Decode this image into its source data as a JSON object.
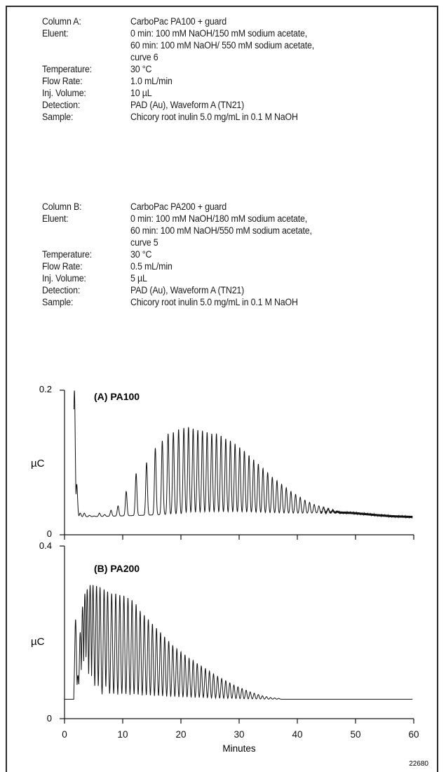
{
  "conditions": {
    "column_a": [
      {
        "label": "Column A:",
        "lines": [
          "CarboPac  PA100 + guard"
        ]
      },
      {
        "label": "Eluent:",
        "lines": [
          "0 min: 100 mM NaOH/150 mM sodium acetate,",
          "60 min: 100 mM NaOH/ 550 mM sodium acetate,",
          "curve 6"
        ]
      },
      {
        "label": "Temperature:",
        "lines": [
          "30 °C"
        ]
      },
      {
        "label": "Flow Rate:",
        "lines": [
          "1.0 mL/min"
        ]
      },
      {
        "label": "Inj. Volume:",
        "lines": [
          "10 µL"
        ]
      },
      {
        "label": "Detection:",
        "lines": [
          "PAD (Au), Waveform A (TN21)"
        ]
      },
      {
        "label": "Sample:",
        "lines": [
          "Chicory root inulin 5.0 mg/mL in 0.1 M NaOH"
        ]
      }
    ],
    "column_b": [
      {
        "label": "Column B:",
        "lines": [
          "CarboPac PA200 + guard"
        ]
      },
      {
        "label": "Eluent:",
        "lines": [
          "0 min: 100 mM NaOH/180 mM sodium acetate,",
          "60 min: 100 mM NaOH/550 mM sodium acetate,",
          "curve 5"
        ]
      },
      {
        "label": "Temperature:",
        "lines": [
          "30 °C"
        ]
      },
      {
        "label": "Flow Rate:",
        "lines": [
          "0.5  mL/min"
        ]
      },
      {
        "label": "Inj. Volume:",
        "lines": [
          "5 µL"
        ]
      },
      {
        "label": "Detection:",
        "lines": [
          "PAD (Au), Waveform A (TN21)"
        ]
      },
      {
        "label": "Sample:",
        "lines": [
          "Chicory root inulin 5.0 mg/mL in 0.1 M NaOH"
        ]
      }
    ]
  },
  "chart_data": [
    {
      "type": "line",
      "title": "(A) PA100",
      "ylabel": "µC",
      "ylim": [
        0,
        0.2
      ],
      "yticks": [
        "0",
        "0.2"
      ],
      "xlim": [
        0,
        60
      ],
      "grid": false,
      "baseline": 0.028,
      "peaks": [
        [
          1.7,
          0.2
        ],
        [
          2.1,
          0.07
        ],
        [
          2.7,
          0.03
        ],
        [
          3.4,
          0.03
        ],
        [
          4.3,
          0.027
        ],
        [
          5.1,
          0.026
        ],
        [
          6,
          0.03
        ],
        [
          6.9,
          0.028
        ],
        [
          8,
          0.034
        ],
        [
          9.2,
          0.04
        ],
        [
          10.6,
          0.06
        ],
        [
          12.3,
          0.085
        ],
        [
          14.1,
          0.1
        ],
        [
          15.6,
          0.12
        ],
        [
          16.8,
          0.13
        ],
        [
          17.8,
          0.14
        ],
        [
          18.7,
          0.142
        ],
        [
          19.6,
          0.146
        ],
        [
          20.5,
          0.148
        ],
        [
          21.3,
          0.149
        ],
        [
          22.1,
          0.147
        ],
        [
          22.9,
          0.145
        ],
        [
          23.7,
          0.144
        ],
        [
          24.5,
          0.142
        ],
        [
          25.3,
          0.14
        ],
        [
          26.1,
          0.14
        ],
        [
          26.9,
          0.137
        ],
        [
          27.7,
          0.133
        ],
        [
          28.5,
          0.13
        ],
        [
          29.3,
          0.126
        ],
        [
          30.1,
          0.121
        ],
        [
          30.9,
          0.116
        ],
        [
          31.7,
          0.11
        ],
        [
          32.5,
          0.104
        ],
        [
          33.3,
          0.098
        ],
        [
          34.1,
          0.092
        ],
        [
          34.9,
          0.086
        ],
        [
          35.7,
          0.08
        ],
        [
          36.5,
          0.075
        ],
        [
          37.3,
          0.07
        ],
        [
          38.1,
          0.065
        ],
        [
          38.9,
          0.06
        ],
        [
          39.7,
          0.056
        ],
        [
          40.5,
          0.052
        ],
        [
          41.3,
          0.048
        ],
        [
          42.1,
          0.045
        ],
        [
          42.9,
          0.042
        ],
        [
          43.7,
          0.04
        ],
        [
          44.5,
          0.038
        ],
        [
          45.3,
          0.036
        ],
        [
          46.1,
          0.034
        ],
        [
          46.9,
          0.032
        ]
      ]
    },
    {
      "type": "line",
      "title": "(B) PA200",
      "ylabel": "µC",
      "ylim": [
        0,
        0.4
      ],
      "yticks": [
        "0",
        "0.4"
      ],
      "xlim": [
        0,
        60
      ],
      "xticks": [
        "0",
        "10",
        "20",
        "30",
        "40",
        "50",
        "60"
      ],
      "xlabel": "Minutes",
      "grid": false,
      "baseline": 0.045,
      "peaks": [
        [
          1.9,
          0.23
        ],
        [
          2.3,
          0.1
        ],
        [
          2.7,
          0.2
        ],
        [
          3.1,
          0.26
        ],
        [
          3.5,
          0.29
        ],
        [
          3.9,
          0.3
        ],
        [
          4.4,
          0.31
        ],
        [
          4.9,
          0.31
        ],
        [
          5.5,
          0.308
        ],
        [
          6.1,
          0.305
        ],
        [
          6.8,
          0.3
        ],
        [
          7.4,
          0.295
        ],
        [
          8.1,
          0.29
        ],
        [
          8.8,
          0.29
        ],
        [
          9.5,
          0.287
        ],
        [
          10.2,
          0.285
        ],
        [
          10.9,
          0.28
        ],
        [
          11.6,
          0.275
        ],
        [
          12.3,
          0.265
        ],
        [
          13,
          0.25
        ],
        [
          13.7,
          0.24
        ],
        [
          14.4,
          0.23
        ],
        [
          15.1,
          0.22
        ],
        [
          15.8,
          0.21
        ],
        [
          16.5,
          0.2
        ],
        [
          17.2,
          0.19
        ],
        [
          17.9,
          0.18
        ],
        [
          18.6,
          0.17
        ],
        [
          19.3,
          0.162
        ],
        [
          20,
          0.155
        ],
        [
          20.7,
          0.148
        ],
        [
          21.4,
          0.14
        ],
        [
          22.1,
          0.135
        ],
        [
          22.8,
          0.128
        ],
        [
          23.5,
          0.122
        ],
        [
          24.2,
          0.116
        ],
        [
          24.9,
          0.11
        ],
        [
          25.6,
          0.104
        ],
        [
          26.3,
          0.098
        ],
        [
          27,
          0.093
        ],
        [
          27.7,
          0.088
        ],
        [
          28.4,
          0.083
        ],
        [
          29.1,
          0.078
        ],
        [
          29.8,
          0.074
        ],
        [
          30.5,
          0.07
        ],
        [
          31.2,
          0.066
        ],
        [
          31.9,
          0.062
        ],
        [
          32.6,
          0.059
        ],
        [
          33.3,
          0.056
        ],
        [
          34,
          0.053
        ],
        [
          34.7,
          0.051
        ],
        [
          35.4,
          0.049
        ],
        [
          36.1,
          0.048
        ],
        [
          36.8,
          0.047
        ]
      ]
    }
  ],
  "figure_id": "22680"
}
